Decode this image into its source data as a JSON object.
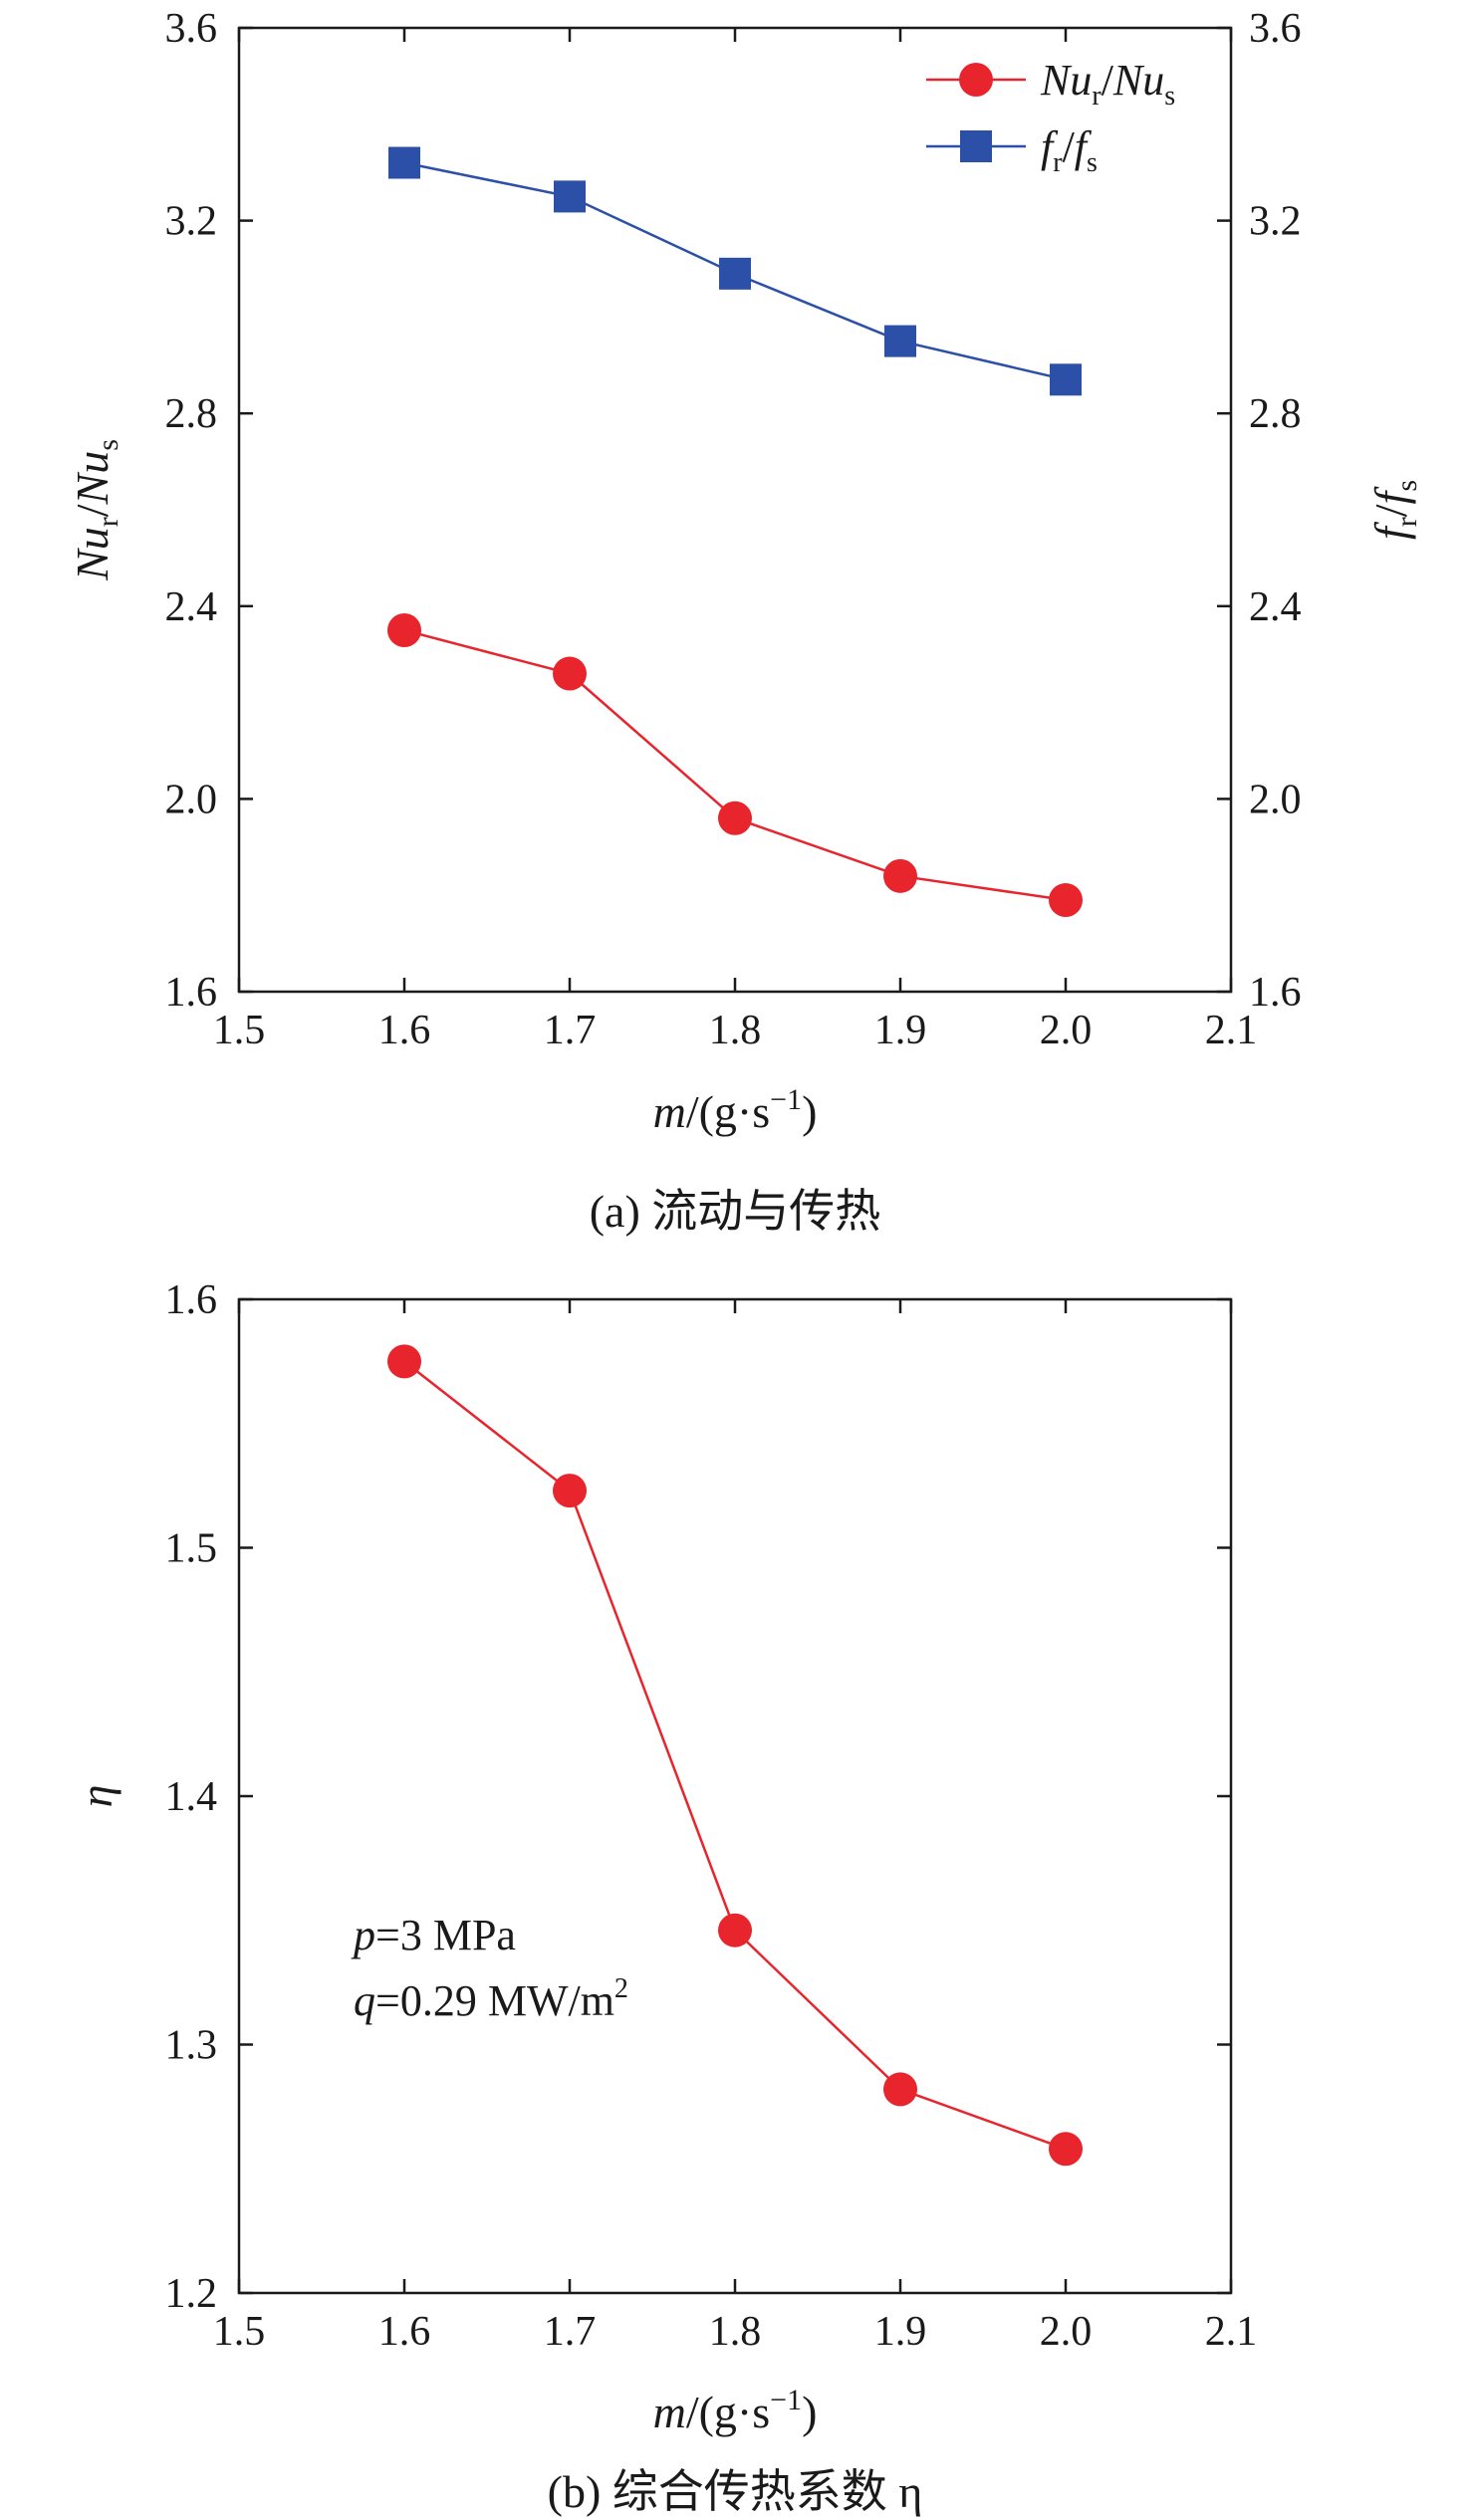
{
  "chart_data": [
    {
      "type": "line",
      "panel": "a",
      "caption": "(a) 流动与传热",
      "x": [
        1.6,
        1.7,
        1.8,
        1.9,
        2.0
      ],
      "xlim": [
        1.5,
        2.1
      ],
      "xticks": [
        "1.5",
        "1.6",
        "1.7",
        "1.8",
        "1.9",
        "2.0",
        "2.1"
      ],
      "xlabel": {
        "main": "m",
        "rest": "/(g·s",
        "sup": "−1",
        "close": ")"
      },
      "ylim": [
        1.6,
        3.6
      ],
      "yticks": [
        "1.6",
        "2.0",
        "2.4",
        "2.8",
        "3.2",
        "3.6"
      ],
      "ylabel_left": {
        "a": "Nu",
        "a_sub": "r",
        "slash": "/",
        "b": "Nu",
        "b_sub": "s"
      },
      "ylabel_right": {
        "a": "f",
        "a_sub": "r",
        "slash": "/",
        "b": "f",
        "b_sub": "s"
      },
      "yticks_right": [
        "1.6",
        "2.0",
        "2.4",
        "2.8",
        "3.2",
        "3.6"
      ],
      "legend_position": "top-right",
      "series": [
        {
          "key": "nu",
          "values": [
            2.35,
            2.26,
            1.96,
            1.84,
            1.79
          ],
          "color": "#e8242d",
          "marker": "circle"
        },
        {
          "key": "f",
          "values": [
            3.32,
            3.25,
            3.09,
            2.95,
            2.87
          ],
          "color": "#2c4fa8",
          "marker": "square"
        }
      ]
    },
    {
      "type": "line",
      "panel": "b",
      "caption": "(b) 综合传热系数 η",
      "x": [
        1.6,
        1.7,
        1.8,
        1.9,
        2.0
      ],
      "xlim": [
        1.5,
        2.1
      ],
      "xticks": [
        "1.5",
        "1.6",
        "1.7",
        "1.8",
        "1.9",
        "2.0",
        "2.1"
      ],
      "xlabel": {
        "main": "m",
        "rest": "/(g·s",
        "sup": "−1",
        "close": ")"
      },
      "ylim": [
        1.2,
        1.6
      ],
      "yticks": [
        "1.2",
        "1.3",
        "1.4",
        "1.5",
        "1.6"
      ],
      "ylabel": "η",
      "annotations": {
        "p_var": "p",
        "p_val": "=3 MPa",
        "q_var": "q",
        "q_val": "=0.29 MW/m",
        "q_sup": "2"
      },
      "series": [
        {
          "key": "eta",
          "values": [
            1.575,
            1.523,
            1.346,
            1.282,
            1.258
          ],
          "color": "#e8242d",
          "marker": "circle"
        }
      ]
    }
  ]
}
